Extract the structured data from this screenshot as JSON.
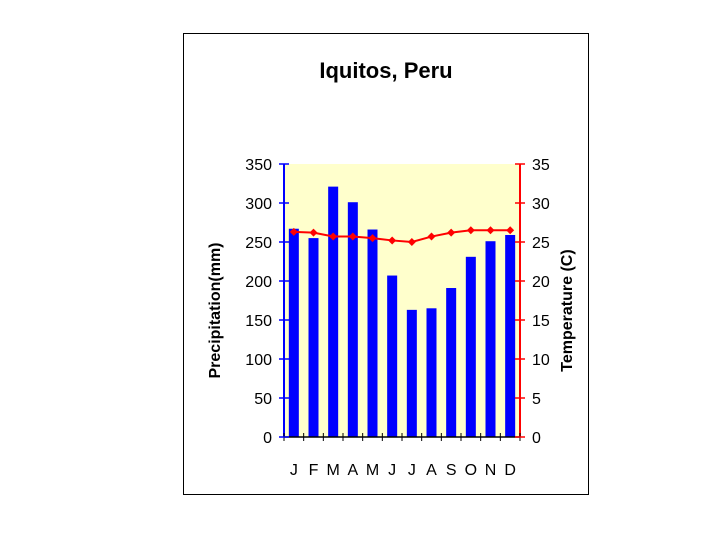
{
  "chart_data": {
    "type": "bar",
    "title": "Iquitos, Peru",
    "categories": [
      "J",
      "F",
      "M",
      "A",
      "M",
      "J",
      "J",
      "A",
      "S",
      "O",
      "N",
      "D"
    ],
    "ylabel": "Precipitation(mm)",
    "y2label": "Temperature (C)",
    "ylim": [
      0,
      350
    ],
    "y2lim": [
      0,
      35
    ],
    "yticks": [
      "0",
      "50",
      "100",
      "150",
      "200",
      "250",
      "300",
      "350"
    ],
    "y2ticks": [
      "0",
      "5",
      "10",
      "15",
      "20",
      "25",
      "30",
      "35"
    ],
    "grid": false,
    "series": [
      {
        "kind": "bar",
        "axis": "left",
        "values": [
          267,
          255,
          321,
          301,
          266,
          207,
          163,
          165,
          191,
          231,
          251,
          259
        ]
      },
      {
        "kind": "line",
        "axis": "right",
        "values": [
          26.3,
          26.2,
          25.7,
          25.7,
          25.5,
          25.2,
          25.0,
          25.7,
          26.2,
          26.5,
          26.5,
          26.5
        ]
      }
    ],
    "colors": {
      "bar": "#0000ff",
      "line": "#ff0000",
      "plot_bg": "#ffffcc",
      "left_axis": "#0000ff",
      "right_axis": "#ff0000"
    }
  }
}
